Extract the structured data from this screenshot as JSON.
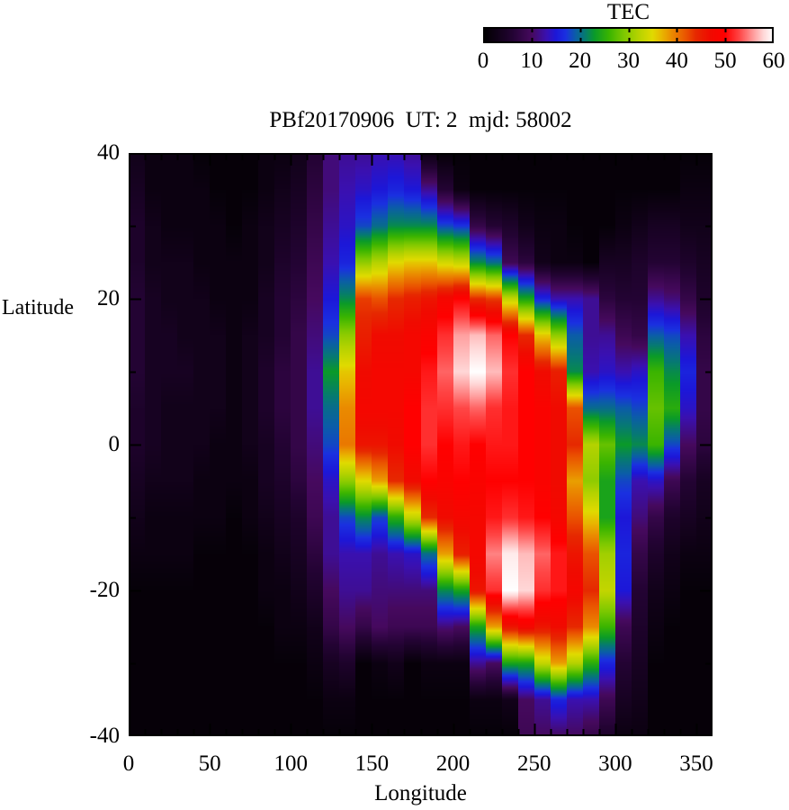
{
  "title": "PBf20170906  UT: 2  mjd: 58002",
  "colorbar": {
    "title": "TEC",
    "min": 0,
    "max": 60,
    "tick_labels": [
      "0",
      "10",
      "20",
      "30",
      "40",
      "50",
      "60"
    ],
    "tick_values": [
      0,
      10,
      20,
      30,
      40,
      50,
      60
    ]
  },
  "axes": {
    "x": {
      "label": "Longitude",
      "range": [
        0,
        360
      ],
      "major_ticks": [
        0,
        50,
        100,
        150,
        200,
        250,
        300,
        350
      ],
      "tick_labels": [
        "0",
        "50",
        "100",
        "150",
        "200",
        "250",
        "300",
        "350"
      ],
      "minor_step": 10
    },
    "y": {
      "label": "Latitude",
      "range": [
        -40,
        40
      ],
      "major_ticks": [
        40,
        20,
        0,
        -20,
        -40
      ],
      "tick_labels": [
        "40",
        "20",
        "0",
        "-20",
        "-40"
      ],
      "minor_step": 10
    }
  },
  "chart_data": {
    "type": "heatmap",
    "title": "PBf20170906  UT: 2  mjd: 58002",
    "xlabel": "Longitude",
    "ylabel": "Latitude",
    "colorbar_label": "TEC",
    "x_range": [
      0,
      360
    ],
    "y_range": [
      -40,
      40
    ],
    "value_range": [
      0,
      60
    ],
    "x_centers": [
      5,
      15,
      25,
      35,
      45,
      55,
      65,
      75,
      85,
      95,
      105,
      115,
      125,
      135,
      145,
      155,
      165,
      175,
      185,
      195,
      205,
      215,
      225,
      235,
      245,
      255,
      265,
      275,
      285,
      295,
      305,
      315,
      325,
      335,
      345,
      355
    ],
    "y_centers": [
      40,
      35,
      30,
      25,
      20,
      15,
      10,
      5,
      0,
      -5,
      -10,
      -15,
      -20,
      -25,
      -30,
      -35,
      -40
    ],
    "values_rows_lat40_to_latm40": [
      [
        3,
        2,
        2,
        2,
        1,
        1,
        1,
        1,
        2,
        2,
        3,
        6,
        11,
        12,
        12,
        13,
        13,
        12,
        2,
        1,
        1,
        1,
        1,
        1,
        1,
        1,
        1,
        1,
        1,
        1,
        1,
        1,
        1,
        1,
        1,
        1
      ],
      [
        4,
        2,
        2,
        2,
        2,
        1,
        1,
        1,
        2,
        3,
        4,
        7,
        11,
        13,
        14,
        15,
        16,
        15,
        12,
        6,
        2,
        1,
        1,
        1,
        1,
        1,
        1,
        1,
        1,
        1,
        1,
        1,
        1,
        1,
        2,
        2
      ],
      [
        5,
        3,
        2,
        2,
        2,
        2,
        1,
        2,
        3,
        4,
        5,
        8,
        12,
        14,
        18,
        20,
        22,
        22,
        22,
        18,
        17,
        8,
        6,
        5,
        3,
        2,
        2,
        1,
        1,
        1,
        2,
        3,
        4,
        4,
        3,
        3
      ],
      [
        5,
        3,
        3,
        3,
        2,
        2,
        2,
        2,
        3,
        5,
        6,
        9,
        13,
        16,
        30,
        32,
        35,
        36,
        36,
        34,
        33,
        22,
        20,
        9,
        7,
        3,
        2,
        2,
        1,
        4,
        4,
        5,
        6,
        6,
        5,
        4
      ],
      [
        6,
        4,
        3,
        3,
        3,
        2,
        2,
        2,
        4,
        6,
        7,
        10,
        15,
        22,
        43,
        42,
        44,
        45,
        46,
        48,
        50,
        44,
        43,
        33,
        24,
        16,
        13,
        13,
        12,
        7,
        6,
        6,
        12,
        11,
        8,
        5
      ],
      [
        6,
        4,
        4,
        3,
        3,
        3,
        2,
        3,
        4,
        6,
        8,
        11,
        18,
        30,
        45,
        47,
        47,
        48,
        49,
        52,
        56,
        57,
        54,
        50,
        44,
        36,
        30,
        19,
        12,
        12,
        9,
        8,
        19,
        18,
        13,
        7
      ],
      [
        6,
        4,
        4,
        4,
        3,
        3,
        2,
        3,
        5,
        7,
        8,
        12,
        23,
        36,
        47,
        48,
        48,
        48,
        51,
        54,
        58,
        60,
        57,
        52,
        50,
        47,
        45,
        22,
        13,
        14,
        13,
        14,
        26,
        22,
        16,
        8
      ],
      [
        5,
        4,
        3,
        3,
        3,
        3,
        2,
        3,
        5,
        7,
        8,
        12,
        20,
        39,
        48,
        48,
        48,
        50,
        52,
        52,
        53,
        54,
        52,
        51,
        50,
        49,
        47,
        42,
        20,
        20,
        19,
        18,
        28,
        25,
        14,
        8
      ],
      [
        5,
        4,
        3,
        3,
        3,
        2,
        2,
        3,
        4,
        6,
        8,
        11,
        18,
        40,
        46,
        46,
        47,
        50,
        52,
        50,
        51,
        50,
        51,
        51,
        50,
        49,
        47,
        44,
        32,
        28,
        23,
        22,
        26,
        18,
        10,
        7
      ],
      [
        4,
        3,
        3,
        3,
        2,
        2,
        2,
        2,
        4,
        5,
        7,
        10,
        14,
        30,
        35,
        38,
        44,
        47,
        50,
        49,
        50,
        49,
        50,
        50,
        50,
        49,
        47,
        38,
        30,
        24,
        18,
        13,
        14,
        9,
        6,
        4
      ],
      [
        3,
        2,
        2,
        2,
        2,
        2,
        1,
        2,
        3,
        4,
        5,
        9,
        12,
        18,
        22,
        18,
        25,
        33,
        44,
        47,
        48,
        48,
        51,
        52,
        51,
        50,
        48,
        42,
        36,
        24,
        15,
        11,
        8,
        5,
        4,
        3
      ],
      [
        2,
        2,
        2,
        2,
        1,
        1,
        1,
        1,
        2,
        3,
        4,
        7,
        12,
        13,
        13,
        12,
        13,
        14,
        20,
        38,
        45,
        48,
        55,
        59,
        57,
        54,
        51,
        46,
        42,
        31,
        16,
        8,
        5,
        3,
        2,
        2
      ],
      [
        1,
        1,
        1,
        1,
        1,
        1,
        1,
        1,
        2,
        2,
        3,
        5,
        10,
        12,
        12,
        11,
        11,
        11,
        11,
        22,
        24,
        46,
        52,
        60,
        58,
        52,
        51,
        48,
        44,
        33,
        15,
        6,
        3,
        2,
        1,
        1
      ],
      [
        1,
        1,
        1,
        1,
        1,
        1,
        1,
        1,
        1,
        2,
        2,
        3,
        8,
        10,
        8,
        10,
        9,
        9,
        9,
        11,
        10,
        24,
        38,
        46,
        48,
        46,
        47,
        44,
        39,
        26,
        9,
        5,
        2,
        1,
        1,
        1
      ],
      [
        1,
        1,
        1,
        1,
        1,
        1,
        1,
        1,
        1,
        1,
        1,
        2,
        4,
        5,
        1,
        2,
        3,
        1,
        2,
        2,
        2,
        12,
        10,
        24,
        24,
        33,
        38,
        32,
        25,
        16,
        6,
        4,
        1,
        1,
        1,
        1
      ],
      [
        1,
        1,
        1,
        1,
        1,
        1,
        1,
        1,
        1,
        1,
        1,
        1,
        2,
        2,
        1,
        1,
        1,
        1,
        1,
        1,
        1,
        2,
        2,
        3,
        10,
        12,
        16,
        13,
        13,
        9,
        4,
        3,
        1,
        1,
        1,
        1
      ],
      [
        1,
        1,
        1,
        1,
        1,
        1,
        1,
        1,
        1,
        1,
        1,
        1,
        1,
        1,
        1,
        1,
        1,
        1,
        1,
        1,
        1,
        1,
        1,
        1,
        9,
        10,
        10,
        10,
        8,
        5,
        2,
        2,
        1,
        1,
        1,
        1
      ]
    ],
    "colormap_stops": [
      [
        0,
        0,
        0,
        0
      ],
      [
        6,
        35,
        3,
        51
      ],
      [
        10,
        70,
        9,
        94
      ],
      [
        13,
        58,
        16,
        176
      ],
      [
        15,
        28,
        23,
        216
      ],
      [
        17,
        26,
        48,
        224
      ],
      [
        19,
        11,
        92,
        168
      ],
      [
        21,
        6,
        122,
        112
      ],
      [
        23,
        10,
        154,
        40
      ],
      [
        26,
        58,
        180,
        0
      ],
      [
        29,
        124,
        200,
        0
      ],
      [
        32,
        180,
        210,
        0
      ],
      [
        35,
        224,
        218,
        0
      ],
      [
        37,
        232,
        180,
        0
      ],
      [
        39,
        234,
        138,
        0
      ],
      [
        42,
        234,
        82,
        0
      ],
      [
        44,
        230,
        40,
        0
      ],
      [
        47,
        240,
        10,
        0
      ],
      [
        50,
        255,
        0,
        0
      ],
      [
        53,
        255,
        70,
        70
      ],
      [
        56,
        255,
        160,
        160
      ],
      [
        58,
        255,
        215,
        215
      ],
      [
        60,
        255,
        255,
        255
      ]
    ],
    "legend_position": "top-right",
    "grid": false
  }
}
